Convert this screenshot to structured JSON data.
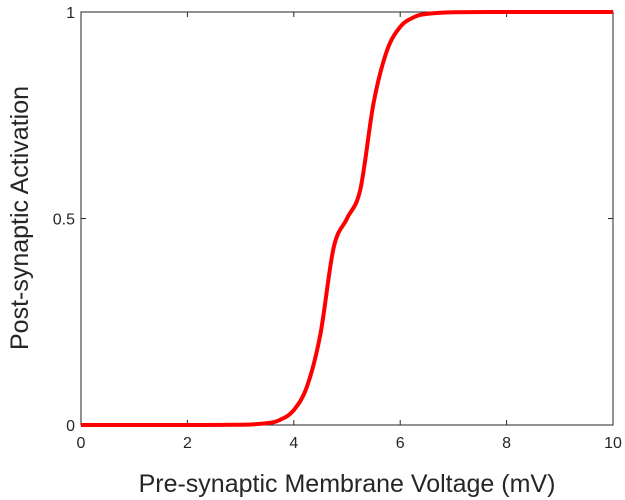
{
  "chart_data": {
    "type": "line",
    "title": "",
    "xlabel": "Pre-synaptic Membrane Voltage (mV)",
    "ylabel": "Post-synaptic Activation",
    "xlim": [
      0,
      10
    ],
    "ylim": [
      0,
      1
    ],
    "xticks": [
      0,
      2,
      4,
      6,
      8,
      10
    ],
    "xtick_labels": [
      "0",
      "2",
      "4",
      "6",
      "8",
      "10"
    ],
    "yticks": [
      0,
      0.5,
      1
    ],
    "ytick_labels": [
      "0",
      "0.5",
      "1"
    ],
    "grid": false,
    "legend": "none",
    "series": [
      {
        "color": "#ff0000",
        "x": [
          0,
          1,
          2,
          3,
          3.5,
          3.75,
          4,
          4.25,
          4.5,
          4.75,
          5,
          5.25,
          5.5,
          5.75,
          6,
          6.25,
          6.5,
          7,
          8,
          9,
          10
        ],
        "y": [
          0,
          0,
          0,
          0.0005,
          0.0045,
          0.013,
          0.036,
          0.094,
          0.22,
          0.43,
          0.5,
          0.57,
          0.78,
          0.906,
          0.964,
          0.987,
          0.9955,
          0.9995,
          1,
          1,
          1
        ]
      }
    ]
  }
}
